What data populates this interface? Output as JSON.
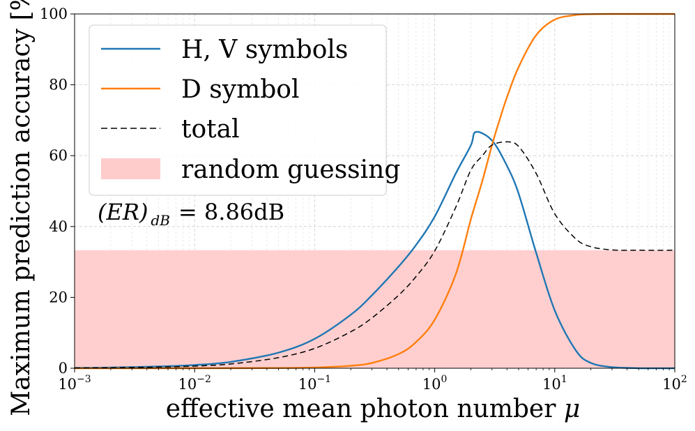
{
  "chart_data": {
    "type": "line",
    "xscale": "log",
    "xlim": [
      0.001,
      100
    ],
    "ylim": [
      0,
      100
    ],
    "xlabel_prefix": "effective mean photon number",
    "xlabel_symbol": "μ",
    "ylabel": "Maximum prediction accuracy [%]",
    "x_ticks": [
      {
        "base": "10",
        "exp": "−3",
        "value": 0.001
      },
      {
        "base": "10",
        "exp": "−2",
        "value": 0.01
      },
      {
        "base": "10",
        "exp": "−1",
        "value": 0.1
      },
      {
        "base": "10",
        "exp": "0",
        "value": 1
      },
      {
        "base": "10",
        "exp": "1",
        "value": 10
      },
      {
        "base": "10",
        "exp": "2",
        "value": 100
      }
    ],
    "y_ticks": [
      "0",
      "20",
      "40",
      "60",
      "80",
      "100"
    ],
    "grid": true,
    "legend_location": "upper-left",
    "random_guessing_level": 33.3,
    "series": [
      {
        "name": "H, V symbols",
        "color": "#1f77b4",
        "style": "solid",
        "x": [
          0.001,
          0.002,
          0.005,
          0.01,
          0.02,
          0.05,
          0.1,
          0.2,
          0.3,
          0.5,
          0.7,
          1.0,
          1.5,
          2.0,
          2.2,
          3.0,
          4.0,
          5.0,
          7.0,
          10,
          15,
          20,
          30,
          50,
          100
        ],
        "y": [
          0.1,
          0.2,
          0.5,
          0.9,
          1.8,
          4.4,
          8.3,
          15.1,
          20.6,
          28.7,
          34.8,
          42.8,
          55.0,
          62.9,
          66.7,
          64.3,
          57.1,
          49.3,
          32.6,
          16.3,
          5.0,
          1.5,
          0.3,
          0.02,
          0.0
        ]
      },
      {
        "name": "D symbol",
        "color": "#ff7f0e",
        "style": "solid",
        "x": [
          0.001,
          0.01,
          0.05,
          0.1,
          0.2,
          0.3,
          0.5,
          0.7,
          1.0,
          1.5,
          2.0,
          2.5,
          3.0,
          3.5,
          4.0,
          5.0,
          7.0,
          10,
          15,
          20,
          30,
          50,
          100
        ],
        "y": [
          0.0,
          0.0,
          0.05,
          0.2,
          0.7,
          1.5,
          4.0,
          7.4,
          13.7,
          26.6,
          42.0,
          53.0,
          63.0,
          70.5,
          76.5,
          85.0,
          94.0,
          98.4,
          99.7,
          99.95,
          100,
          100,
          100
        ]
      },
      {
        "name": "total",
        "color": "#000000",
        "style": "dashed",
        "x": [
          0.001,
          0.002,
          0.005,
          0.01,
          0.02,
          0.05,
          0.1,
          0.2,
          0.3,
          0.5,
          0.7,
          1.0,
          1.5,
          2.0,
          2.5,
          3.0,
          4.0,
          5.0,
          7.0,
          10,
          15,
          20,
          30,
          50,
          100
        ],
        "y": [
          0.07,
          0.13,
          0.33,
          0.6,
          1.2,
          3.0,
          5.6,
          10.3,
          14.2,
          20.6,
          25.9,
          33.1,
          45.5,
          55.9,
          60.0,
          63.0,
          63.9,
          62.6,
          55.0,
          43.6,
          36.5,
          34.3,
          33.4,
          33.3,
          33.3
        ]
      }
    ],
    "legend": [
      {
        "label": "H, V symbols",
        "kind": "line",
        "color": "#1f77b4"
      },
      {
        "label": "D symbol",
        "kind": "line",
        "color": "#ff7f0e"
      },
      {
        "label": "total",
        "kind": "dashed",
        "color": "#000000"
      },
      {
        "label": "random guessing",
        "kind": "patch",
        "color": "#ffcccc"
      }
    ],
    "annotation": {
      "lhs": "(ER)",
      "sub": "dB",
      "rhs": "= 8.86dB"
    }
  }
}
